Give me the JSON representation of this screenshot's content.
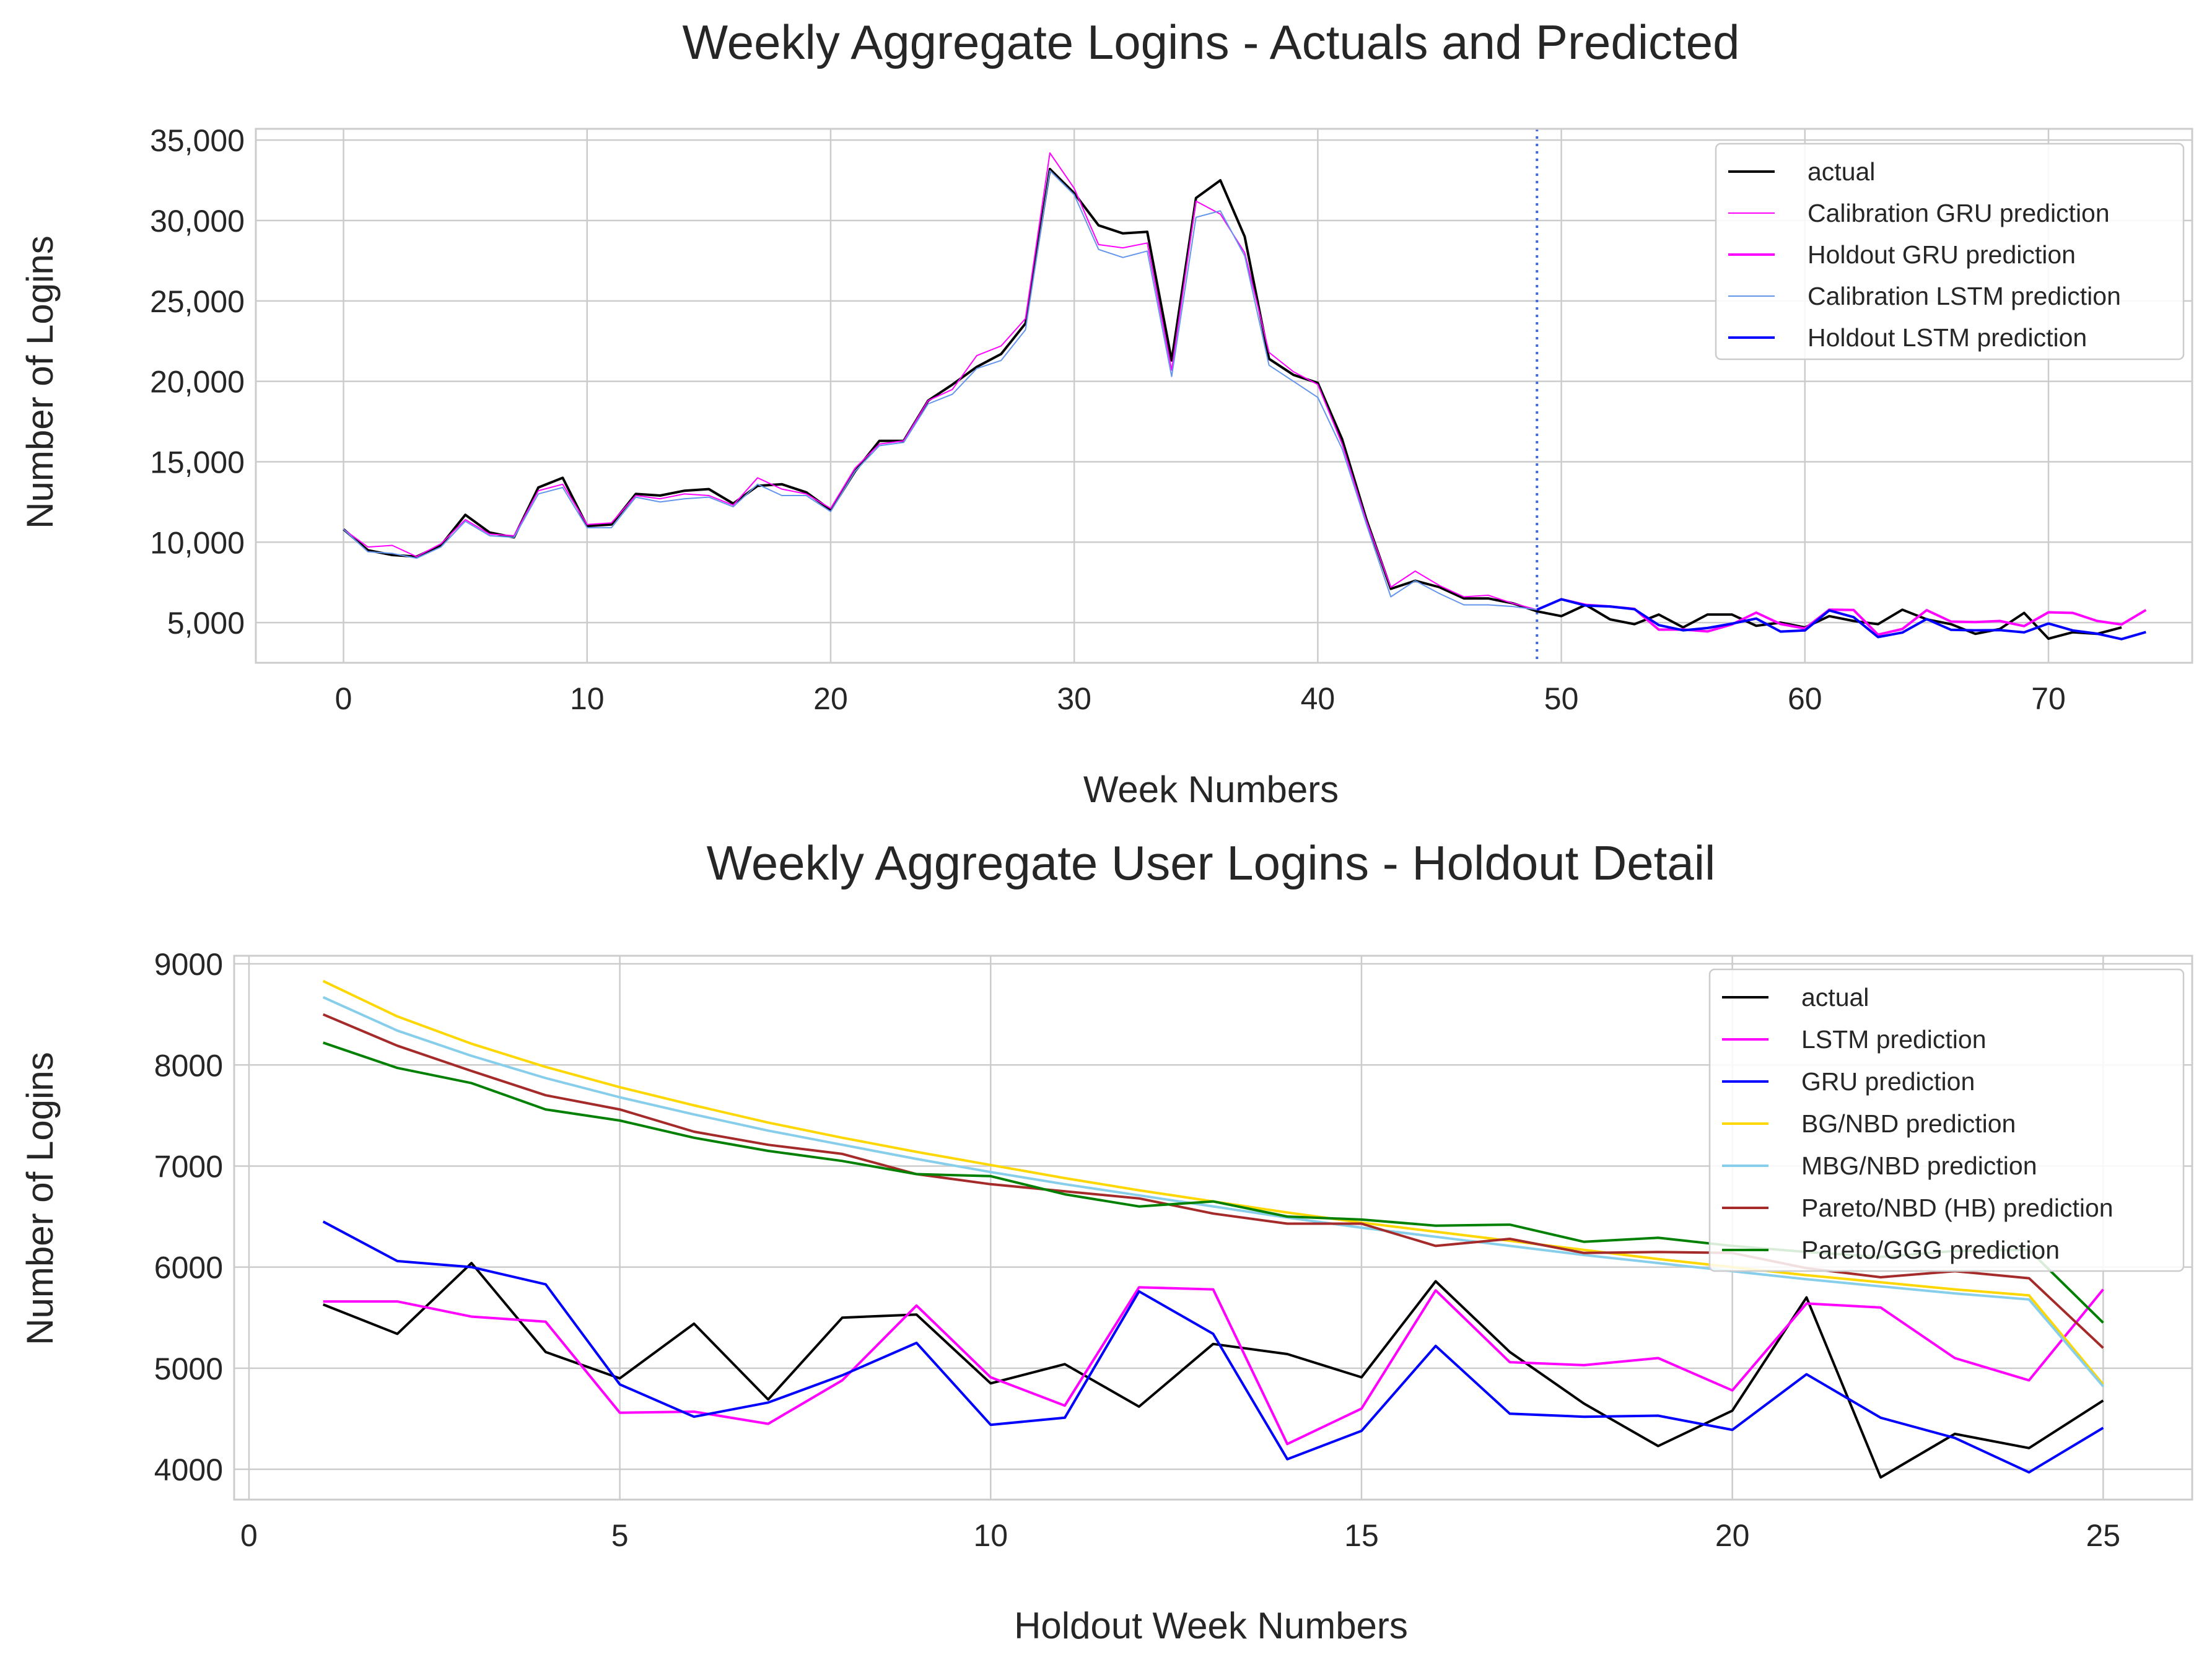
{
  "chart_data": [
    {
      "type": "line",
      "title": "Weekly Aggregate Logins - Actuals and Predicted",
      "xlabel": "Week Numbers",
      "ylabel": "Number of Logins",
      "xlim": [
        -3.6,
        75.9
      ],
      "ylim": [
        2500,
        35700
      ],
      "xticks": [
        0,
        10,
        20,
        30,
        40,
        50,
        60,
        70
      ],
      "xtick_labels": [
        "0",
        "10",
        "20",
        "30",
        "40",
        "50",
        "60",
        "70"
      ],
      "yticks": [
        5000,
        10000,
        15000,
        20000,
        25000,
        30000,
        35000
      ],
      "ytick_labels": [
        "5,000",
        "10,000",
        "15,000",
        "20,000",
        "25,000",
        "30,000",
        "35,000"
      ],
      "grid": true,
      "legend_position": "top-right",
      "split_line": {
        "x": 49,
        "color": "#4169e1",
        "style": "dotted"
      },
      "series": [
        {
          "name": "actual",
          "color": "#000000",
          "width": 4,
          "x_start": 0,
          "values": [
            10800,
            9500,
            9200,
            9100,
            9800,
            11700,
            10600,
            10300,
            13400,
            14000,
            11000,
            11100,
            13000,
            12900,
            13200,
            13300,
            12400,
            13500,
            13600,
            13100,
            12000,
            14400,
            16300,
            16300,
            18800,
            19800,
            20900,
            21700,
            23600,
            33200,
            31700,
            29700,
            29200,
            29300,
            21300,
            31400,
            32500,
            29000,
            21400,
            20400,
            19900,
            16400,
            11400,
            7100,
            7600,
            7200,
            6500,
            6500,
            6200,
            5700,
            5400,
            6100,
            5200,
            4900,
            5500,
            4700,
            5500,
            5500,
            4800,
            5000,
            4700,
            5400,
            5100,
            4900,
            5800,
            5200,
            4900,
            4300,
            4600,
            5600,
            4000,
            4400,
            4300,
            4700
          ]
        },
        {
          "name": "Calibration GRU prediction",
          "color": "#ff00ff",
          "width": 2,
          "x_start": 0,
          "values": [
            10800,
            9700,
            9800,
            9100,
            9900,
            11400,
            10500,
            10400,
            13200,
            13600,
            11100,
            11200,
            12900,
            12700,
            13000,
            12900,
            12300,
            14000,
            13300,
            13000,
            12100,
            14600,
            16100,
            16300,
            18800,
            19500,
            21600,
            22200,
            23900,
            34200,
            32000,
            28500,
            28300,
            28600,
            20700,
            31200,
            30400,
            28000,
            21800,
            20600,
            19800,
            16100,
            11300,
            7200,
            8200,
            7300,
            6600,
            6700,
            6200,
            5800
          ]
        },
        {
          "name": "Holdout GRU prediction",
          "color": "#ff00ff",
          "width": 4,
          "x_start": 49,
          "values": [
            5800,
            6450,
            6100,
            6000,
            5850,
            4560,
            4570,
            4450,
            4880,
            5620,
            4910,
            4630,
            5800,
            5780,
            4250,
            4600,
            5770,
            5060,
            5030,
            5100,
            4780,
            5640,
            5600,
            5100,
            4880,
            5780
          ]
        },
        {
          "name": "Calibration LSTM prediction",
          "color": "#6495ed",
          "width": 2,
          "x_start": 0,
          "values": [
            10800,
            9400,
            9300,
            9000,
            9700,
            11300,
            10400,
            10300,
            13000,
            13400,
            10900,
            10900,
            12800,
            12500,
            12700,
            12800,
            12200,
            13600,
            12900,
            12900,
            11900,
            14400,
            16000,
            16200,
            18600,
            19200,
            20800,
            21300,
            23200,
            33100,
            31600,
            28200,
            27700,
            28100,
            20300,
            30200,
            30600,
            27800,
            21000,
            20000,
            19000,
            15800,
            11100,
            6600,
            7600,
            6800,
            6100,
            6100,
            6000,
            5800
          ]
        },
        {
          "name": "Holdout LSTM prediction",
          "color": "#0000ff",
          "width": 4,
          "x_start": 49,
          "values": [
            5800,
            6450,
            6060,
            6000,
            5830,
            4840,
            4520,
            4660,
            4930,
            5250,
            4440,
            4510,
            5760,
            5340,
            4100,
            4380,
            5220,
            4550,
            4520,
            4530,
            4390,
            4940,
            4510,
            4310,
            3970,
            4410
          ]
        }
      ]
    },
    {
      "type": "line",
      "title": "Weekly Aggregate User Logins - Holdout Detail",
      "xlabel": "Holdout Week Numbers",
      "ylabel": "Number of Logins",
      "xlim": [
        -0.2,
        26.2
      ],
      "ylim": [
        3700,
        9080
      ],
      "xticks": [
        0,
        5,
        10,
        15,
        20,
        25
      ],
      "xtick_labels": [
        "0",
        "5",
        "10",
        "15",
        "20",
        "25"
      ],
      "yticks": [
        4000,
        5000,
        6000,
        7000,
        8000,
        9000
      ],
      "ytick_labels": [
        "4000",
        "5000",
        "6000",
        "7000",
        "8000",
        "9000"
      ],
      "grid": true,
      "legend_position": "top-right",
      "x": [
        1,
        2,
        3,
        4,
        5,
        6,
        7,
        8,
        9,
        10,
        11,
        12,
        13,
        14,
        15,
        16,
        17,
        18,
        19,
        20,
        21,
        22,
        23,
        24,
        25
      ],
      "series": [
        {
          "name": "actual",
          "color": "#000000",
          "values": [
            5630,
            5340,
            6040,
            5160,
            4900,
            5440,
            4690,
            5500,
            5530,
            4850,
            5040,
            4620,
            5240,
            5140,
            4910,
            5860,
            5160,
            4650,
            4230,
            4580,
            5700,
            3920,
            4350,
            4210,
            4680
          ]
        },
        {
          "name": "LSTM prediction",
          "color": "#ff00ff",
          "values": [
            5660,
            5660,
            5510,
            5460,
            4560,
            4570,
            4450,
            4880,
            5620,
            4910,
            4630,
            5800,
            5780,
            4250,
            4600,
            5770,
            5060,
            5030,
            5100,
            4780,
            5640,
            5600,
            5100,
            4880,
            5780
          ]
        },
        {
          "name": "GRU prediction",
          "color": "#0000ff",
          "values": [
            6450,
            6060,
            6000,
            5830,
            4840,
            4520,
            4660,
            4930,
            5250,
            4440,
            4510,
            5760,
            5340,
            4100,
            4380,
            5220,
            4550,
            4520,
            4530,
            4390,
            4940,
            4510,
            4310,
            3970,
            4410
          ]
        },
        {
          "name": "BG/NBD prediction",
          "color": "#ffd700",
          "values": [
            8830,
            8480,
            8210,
            7980,
            7780,
            7600,
            7430,
            7280,
            7140,
            7010,
            6880,
            6760,
            6650,
            6540,
            6440,
            6350,
            6260,
            6170,
            6080,
            6000,
            5920,
            5850,
            5780,
            5720,
            4840
          ]
        },
        {
          "name": "MBG/NBD prediction",
          "color": "#87ceeb",
          "values": [
            8670,
            8340,
            8090,
            7870,
            7680,
            7510,
            7350,
            7210,
            7070,
            6940,
            6820,
            6710,
            6600,
            6490,
            6390,
            6300,
            6210,
            6120,
            6040,
            5960,
            5880,
            5810,
            5740,
            5680,
            4820
          ]
        },
        {
          "name": "Pareto/NBD (HB) prediction",
          "color": "#a52a2a",
          "values": [
            8500,
            8190,
            7940,
            7700,
            7560,
            7340,
            7210,
            7120,
            6920,
            6820,
            6750,
            6680,
            6530,
            6430,
            6430,
            6210,
            6280,
            6140,
            6150,
            6140,
            5990,
            5900,
            5960,
            5890,
            5200
          ]
        },
        {
          "name": "Pareto/GGG prediction",
          "color": "#008000",
          "values": [
            8220,
            7970,
            7820,
            7560,
            7450,
            7280,
            7150,
            7050,
            6920,
            6900,
            6720,
            6600,
            6650,
            6500,
            6470,
            6410,
            6420,
            6250,
            6290,
            6210,
            6150,
            6100,
            6160,
            6170,
            5450
          ]
        }
      ]
    }
  ]
}
